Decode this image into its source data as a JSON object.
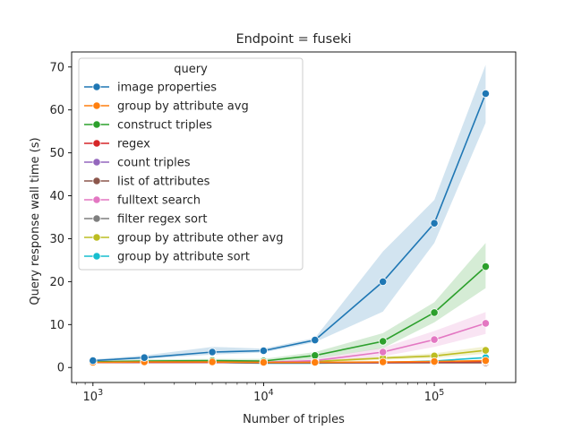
{
  "chart_data": {
    "type": "line",
    "title": "Endpoint = fuseki",
    "xlabel": "Number of triples",
    "ylabel": "Query response wall time (s)",
    "x_scale": "log",
    "xlim": [
      750,
      300000
    ],
    "ylim": [
      -3.5,
      73.5
    ],
    "x_ticks": [
      {
        "value": 1000,
        "base": "10",
        "exp": "3"
      },
      {
        "value": 10000,
        "base": "10",
        "exp": "4"
      },
      {
        "value": 100000,
        "base": "10",
        "exp": "5"
      }
    ],
    "y_ticks": [
      0,
      10,
      20,
      30,
      40,
      50,
      60,
      70
    ],
    "grid": false,
    "legend": {
      "title": "query",
      "position": "upper-left"
    },
    "x": [
      1000,
      2000,
      5000,
      10000,
      20000,
      50000,
      100000,
      200000
    ],
    "series": [
      {
        "name": "image properties",
        "color": "#1f77b4",
        "values": [
          1.6,
          2.3,
          3.6,
          3.9,
          6.4,
          20.0,
          33.6,
          63.8
        ],
        "ci_low": [
          1.4,
          2.0,
          3.0,
          3.5,
          5.9,
          13.0,
          29.0,
          57.0
        ],
        "ci_high": [
          1.9,
          2.8,
          4.8,
          4.4,
          6.9,
          27.0,
          39.0,
          70.5
        ]
      },
      {
        "name": "group by attribute avg",
        "color": "#ff7f0e",
        "values": [
          1.2,
          1.3,
          1.3,
          1.2,
          1.2,
          1.3,
          1.4,
          1.6
        ],
        "ci_low": null,
        "ci_high": null
      },
      {
        "name": "construct triples",
        "color": "#2ca02c",
        "values": [
          1.3,
          1.5,
          1.6,
          1.5,
          2.8,
          6.1,
          12.8,
          23.5
        ],
        "ci_low": [
          1.1,
          1.2,
          1.3,
          1.2,
          2.0,
          4.5,
          10.5,
          18.5
        ],
        "ci_high": [
          1.5,
          1.9,
          2.0,
          2.0,
          3.6,
          8.0,
          15.2,
          29.0
        ]
      },
      {
        "name": "regex",
        "color": "#d62728",
        "values": [
          1.2,
          1.2,
          1.2,
          1.2,
          1.2,
          1.2,
          1.3,
          1.4
        ],
        "ci_low": null,
        "ci_high": null
      },
      {
        "name": "count triples",
        "color": "#9467bd",
        "values": [
          1.2,
          1.2,
          1.2,
          1.2,
          1.2,
          1.2,
          1.3,
          1.4
        ],
        "ci_low": null,
        "ci_high": null
      },
      {
        "name": "list of attributes",
        "color": "#8c564b",
        "values": [
          1.2,
          1.2,
          1.2,
          1.1,
          1.1,
          1.1,
          1.1,
          1.1
        ],
        "ci_low": null,
        "ci_high": null
      },
      {
        "name": "fulltext search",
        "color": "#e377c2",
        "values": [
          1.2,
          1.3,
          1.3,
          1.2,
          1.6,
          3.6,
          6.5,
          10.3
        ],
        "ci_low": [
          1.1,
          1.1,
          1.1,
          1.0,
          1.2,
          2.6,
          4.8,
          7.8
        ],
        "ci_high": [
          1.4,
          1.5,
          1.5,
          1.4,
          2.0,
          4.6,
          8.5,
          12.9
        ]
      },
      {
        "name": "filter regex sort",
        "color": "#7f7f7f",
        "values": [
          1.2,
          1.2,
          1.2,
          1.1,
          1.1,
          1.1,
          1.2,
          1.3
        ],
        "ci_low": null,
        "ci_high": null
      },
      {
        "name": "group by attribute other avg",
        "color": "#bcbd22",
        "values": [
          1.2,
          1.3,
          1.3,
          1.2,
          1.4,
          2.2,
          2.7,
          4.0
        ],
        "ci_low": [
          1.1,
          1.1,
          1.1,
          1.0,
          1.2,
          1.8,
          2.2,
          3.2
        ],
        "ci_high": [
          1.4,
          1.5,
          1.5,
          1.4,
          1.6,
          2.6,
          3.3,
          4.9
        ]
      },
      {
        "name": "group by attribute sort",
        "color": "#17becf",
        "values": [
          1.2,
          1.2,
          1.2,
          1.0,
          1.0,
          1.2,
          1.5,
          2.3
        ],
        "ci_low": null,
        "ci_high": null
      }
    ]
  }
}
